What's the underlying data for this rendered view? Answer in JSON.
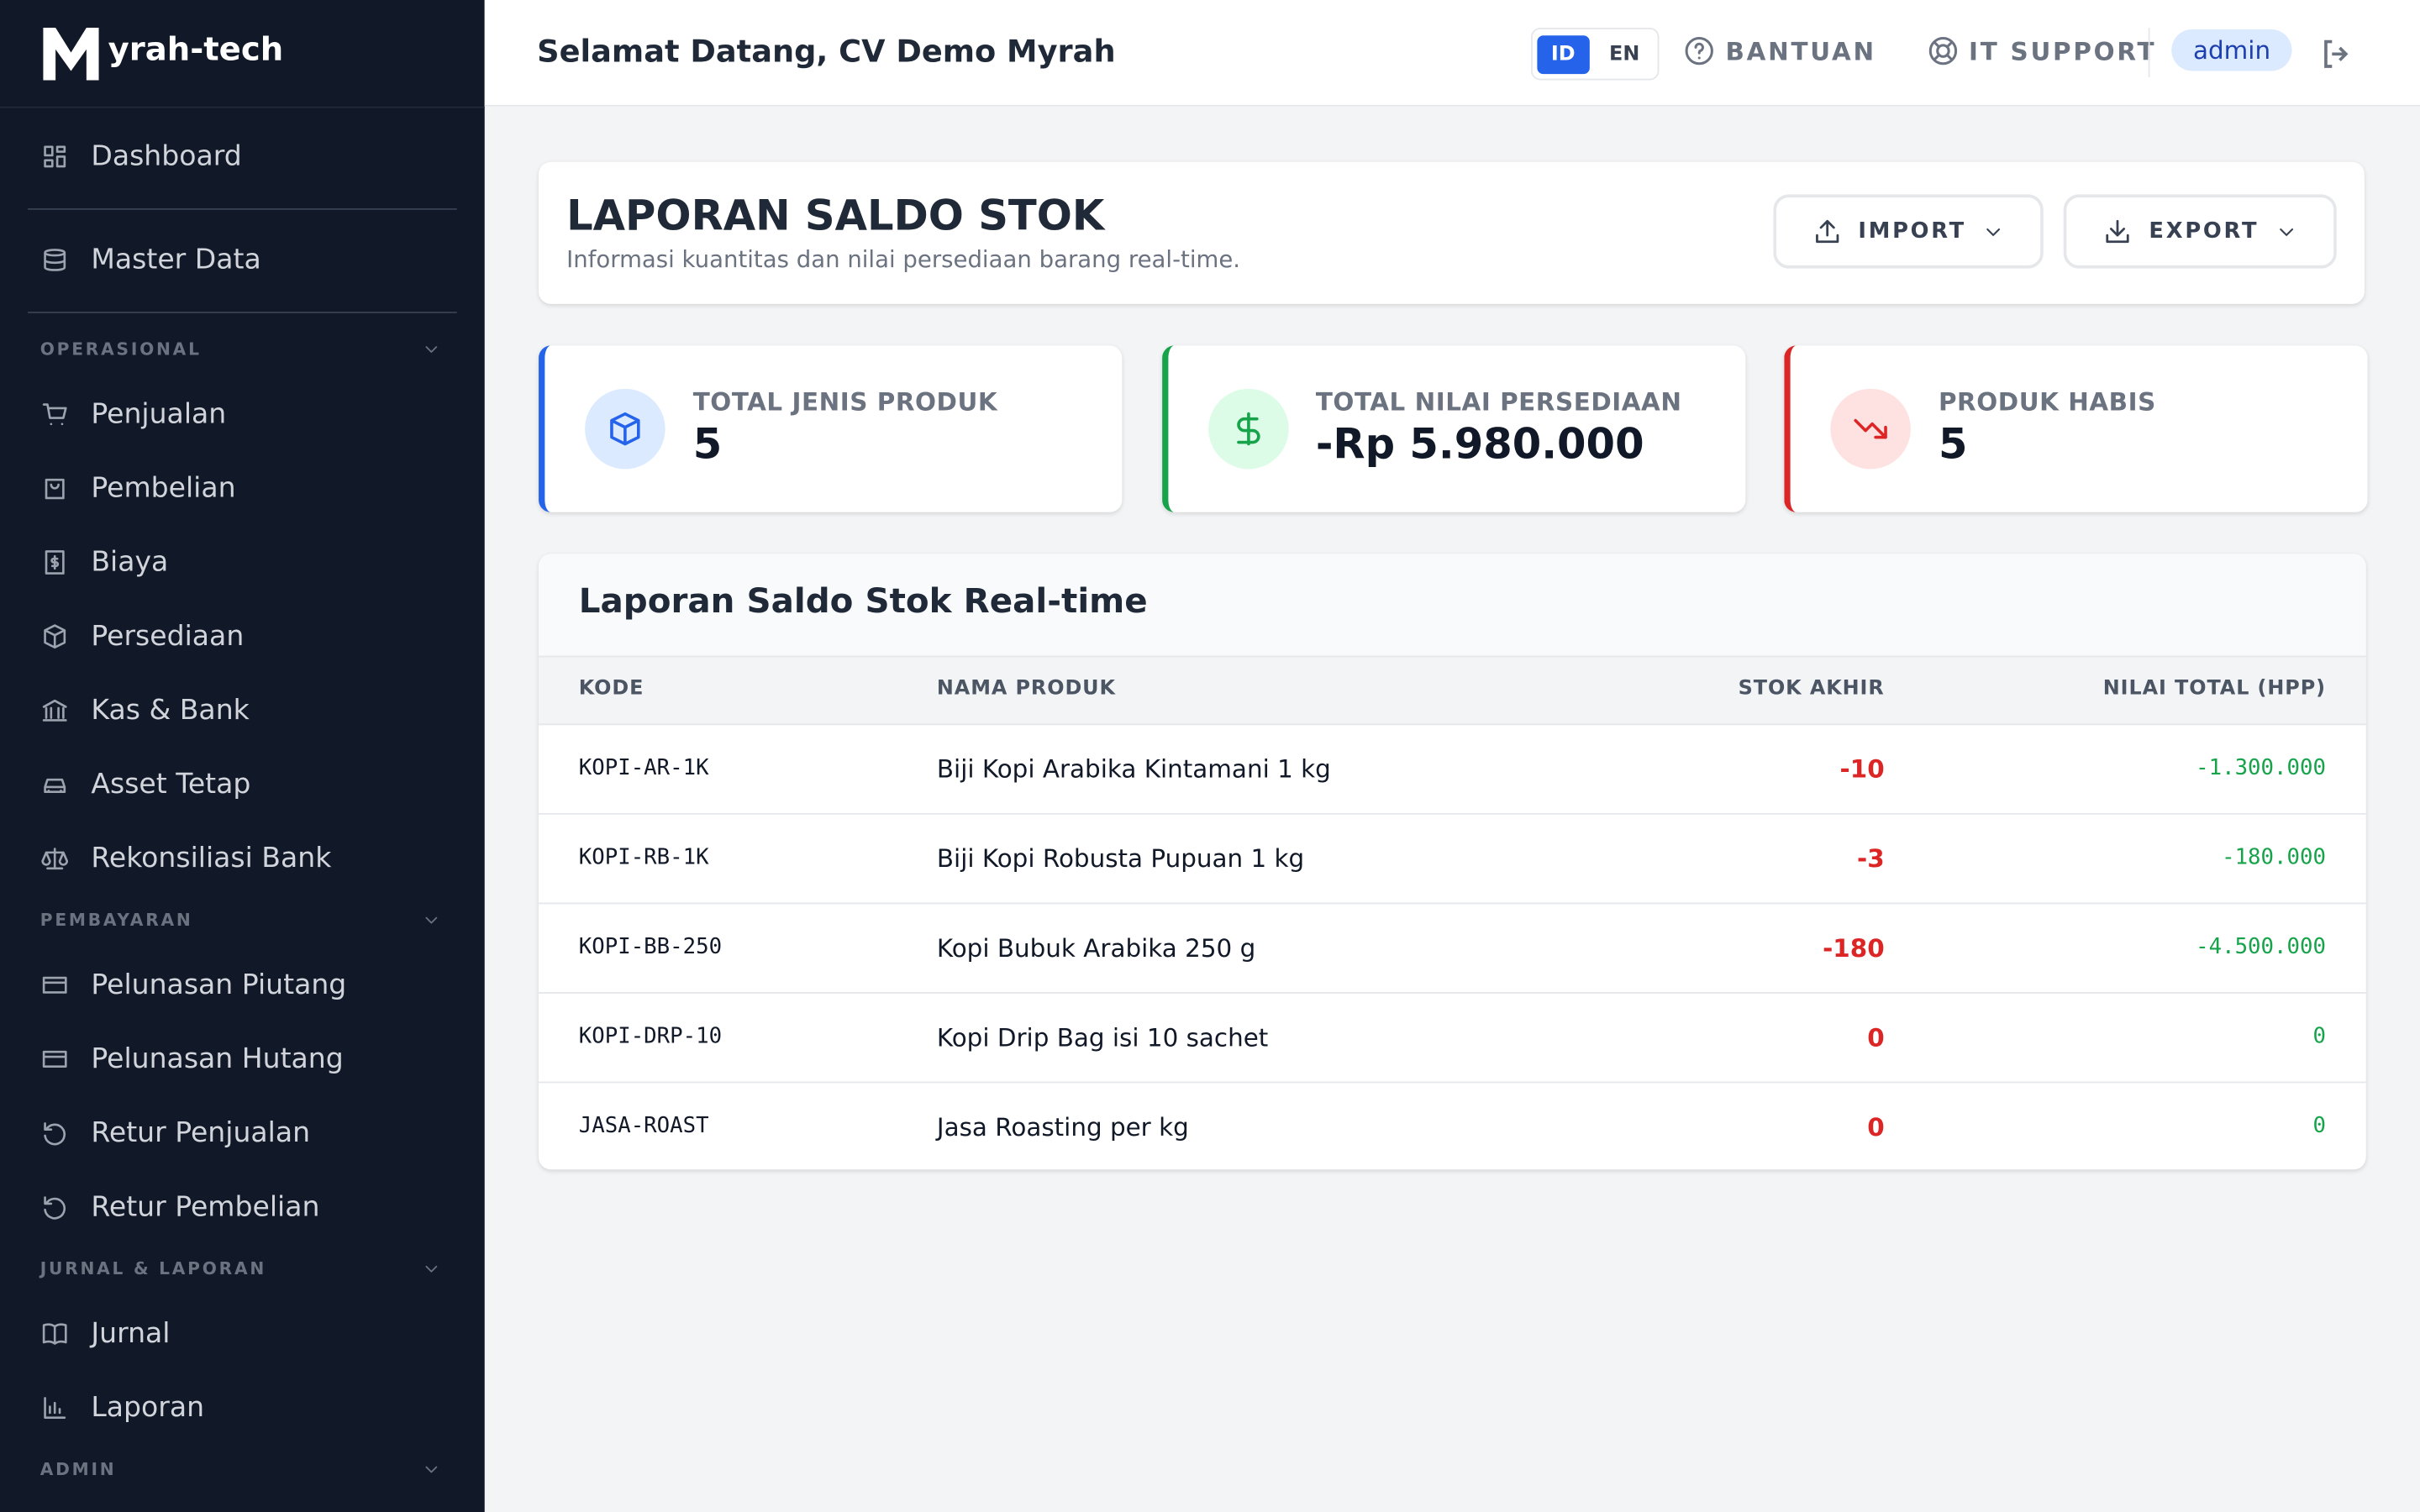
{
  "sidebar": {
    "brand": "yrah-tech",
    "top_items": [
      "Dashboard",
      "Master Data"
    ],
    "sections": [
      {
        "heading": "OPERASIONAL",
        "items": [
          "Penjualan",
          "Pembelian",
          "Biaya",
          "Persediaan",
          "Kas & Bank",
          "Asset Tetap",
          "Rekonsiliasi Bank"
        ]
      },
      {
        "heading": "PEMBAYARAN",
        "items": [
          "Pelunasan Piutang",
          "Pelunasan Hutang",
          "Retur Penjualan",
          "Retur Pembelian"
        ]
      },
      {
        "heading": "JURNAL & LAPORAN",
        "items": [
          "Jurnal",
          "Laporan"
        ]
      },
      {
        "heading": "ADMIN",
        "items": []
      }
    ]
  },
  "header": {
    "welcome": "Selamat Datang, CV Demo Myrah",
    "languages": [
      {
        "code": "ID",
        "active": true
      },
      {
        "code": "EN",
        "active": false
      }
    ],
    "links": [
      "BANTUAN",
      "IT SUPPORT"
    ],
    "user": "admin"
  },
  "page": {
    "title": "LAPORAN SALDO STOK",
    "subtitle": "Informasi kuantitas dan nilai persediaan barang real-time.",
    "buttons": [
      "IMPORT",
      "EXPORT"
    ]
  },
  "cards": [
    {
      "label": "TOTAL JENIS PRODUK",
      "value": 5,
      "color": "#2563eb",
      "bg": "#dbeafe"
    },
    {
      "label": "TOTAL NILAI PERSEDIAAN",
      "value": "-Rp 5.980.000",
      "color": "#16a34a",
      "bg": "#dcfce7"
    },
    {
      "label": "PRODUK HABIS",
      "value": 5,
      "color": "#dc2626",
      "bg": "#fee2e2"
    }
  ],
  "table": {
    "title": "Laporan Saldo Stok Real-time",
    "columns": [
      "KODE",
      "NAMA PRODUK",
      "STOK AKHIR",
      "NILAI TOTAL (HPP)"
    ],
    "rows": [
      [
        "KOPI-AR-1K",
        "Biji Kopi Arabika Kintamani 1 kg",
        -10,
        "-1.300.000"
      ],
      [
        "KOPI-RB-1K",
        "Biji Kopi Robusta Pupuan 1 kg",
        -3,
        "-180.000"
      ],
      [
        "KOPI-BB-250",
        "Kopi Bubuk Arabika 250 g",
        -180,
        "-4.500.000"
      ],
      [
        "KOPI-DRP-10",
        "Kopi Drip Bag isi 10 sachet",
        0,
        "0"
      ],
      [
        "JASA-ROAST",
        "Jasa Roasting per kg",
        0,
        "0"
      ]
    ]
  }
}
